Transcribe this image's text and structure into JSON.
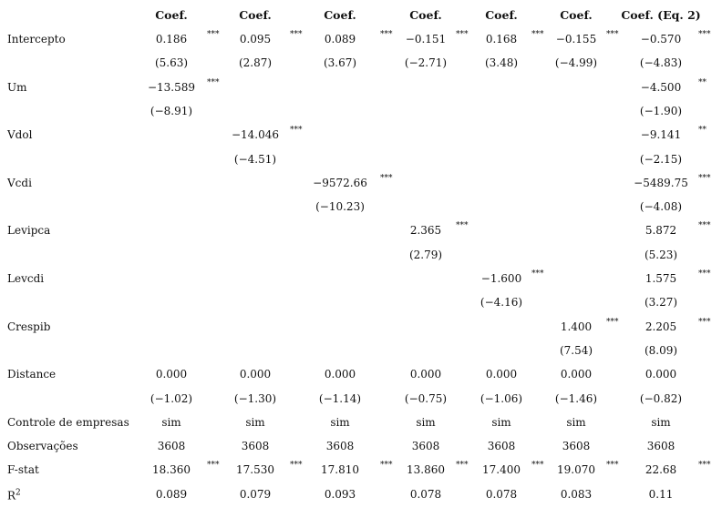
{
  "table": {
    "header": [
      "Coef.",
      "Coef.",
      "Coef.",
      "Coef.",
      "Coef.",
      "Coef.",
      "Coef. (Eq. 2)"
    ],
    "rows": [
      {
        "label": "Intercepto",
        "values": [
          "0.186",
          "0.095",
          "0.089",
          "−0.151",
          "0.168",
          "−0.155",
          "−0.570"
        ],
        "stars": [
          "***",
          "***",
          "***",
          "***",
          "***",
          "***",
          "***"
        ],
        "t": [
          "(5.63)",
          "(2.87)",
          "(3.67)",
          "(−2.71)",
          "(3.48)",
          "(−4.99)",
          "(−4.83)"
        ]
      },
      {
        "label": "Um",
        "values": [
          "−13.589",
          null,
          null,
          null,
          null,
          null,
          "−4.500"
        ],
        "stars": [
          "***",
          null,
          null,
          null,
          null,
          null,
          "**"
        ],
        "t": [
          "(−8.91)",
          null,
          null,
          null,
          null,
          null,
          "(−1.90)"
        ]
      },
      {
        "label": "Vdol",
        "values": [
          null,
          "−14.046",
          null,
          null,
          null,
          null,
          "−9.141"
        ],
        "stars": [
          null,
          "***",
          null,
          null,
          null,
          null,
          "**"
        ],
        "t": [
          null,
          "(−4.51)",
          null,
          null,
          null,
          null,
          "(−2.15)"
        ]
      },
      {
        "label": "Vcdi",
        "values": [
          null,
          null,
          "−9572.66",
          null,
          null,
          null,
          "−5489.75"
        ],
        "stars": [
          null,
          null,
          "***",
          null,
          null,
          null,
          "***"
        ],
        "t": [
          null,
          null,
          "(−10.23)",
          null,
          null,
          null,
          "(−4.08)"
        ]
      },
      {
        "label": "Levipca",
        "values": [
          null,
          null,
          null,
          "2.365",
          null,
          null,
          "5.872"
        ],
        "stars": [
          null,
          null,
          null,
          "***",
          null,
          null,
          "***"
        ],
        "t": [
          null,
          null,
          null,
          "(2.79)",
          null,
          null,
          "(5.23)"
        ]
      },
      {
        "label": "Levcdi",
        "values": [
          null,
          null,
          null,
          null,
          "−1.600",
          null,
          "1.575"
        ],
        "stars": [
          null,
          null,
          null,
          null,
          "***",
          null,
          "***"
        ],
        "t": [
          null,
          null,
          null,
          null,
          "(−4.16)",
          null,
          "(3.27)"
        ]
      },
      {
        "label": "Crespib",
        "values": [
          null,
          null,
          null,
          null,
          null,
          "1.400",
          "2.205"
        ],
        "stars": [
          null,
          null,
          null,
          null,
          null,
          "***",
          "***"
        ],
        "t": [
          null,
          null,
          null,
          null,
          null,
          "(7.54)",
          "(8.09)"
        ]
      },
      {
        "label": "Distance",
        "values": [
          "0.000",
          "0.000",
          "0.000",
          "0.000",
          "0.000",
          "0.000",
          "0.000"
        ],
        "t": [
          "(−1.02)",
          "(−1.30)",
          "(−1.14)",
          "(−0.75)",
          "(−1.06)",
          "(−1.46)",
          "(−0.82)"
        ]
      },
      {
        "label": "Controle de empresas",
        "values": [
          "sim",
          "sim",
          "sim",
          "sim",
          "sim",
          "sim",
          "sim"
        ]
      },
      {
        "label": "Observações",
        "values": [
          "3608",
          "3608",
          "3608",
          "3608",
          "3608",
          "3608",
          "3608"
        ]
      },
      {
        "label": "F-stat",
        "values": [
          "18.360",
          "17.530",
          "17.810",
          "13.860",
          "17.400",
          "19.070",
          "22.68"
        ],
        "stars": [
          "***",
          "***",
          "***",
          "***",
          "***",
          "***",
          "***"
        ]
      },
      {
        "label": "R",
        "label_sup": "2",
        "values": [
          "0.089",
          "0.079",
          "0.093",
          "0.078",
          "0.078",
          "0.083",
          "0.11"
        ]
      }
    ]
  }
}
